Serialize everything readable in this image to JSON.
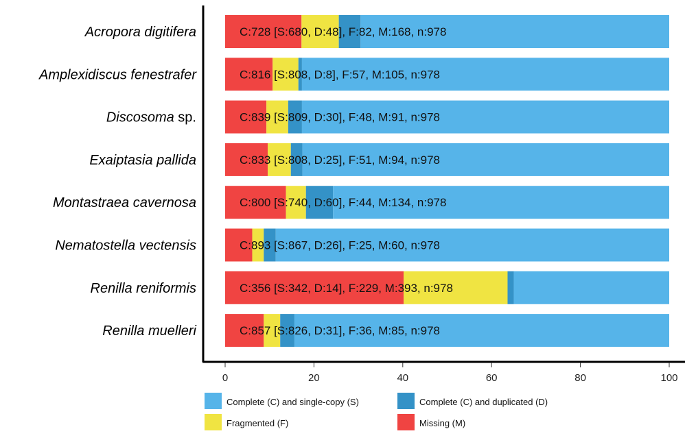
{
  "colors": {
    "single": "#56B4E9",
    "duplicated": "#3492C7",
    "fragmented": "#F0E442",
    "missing": "#F04442"
  },
  "chart_data": {
    "type": "bar",
    "orientation": "horizontal",
    "stacked": true,
    "xlim": [
      0,
      100
    ],
    "x_ticks": [
      0,
      20,
      40,
      60,
      80,
      100
    ],
    "grid": false,
    "legend_position": "bottom",
    "categories": [
      "Acropora digitifera",
      "Amplexidiscus fenestrafer",
      "Discosoma sp.",
      "Exaiptasia pallida",
      "Montastraea cavernosa",
      "Nematostella vectensis",
      "Renilla reniformis",
      "Renilla muelleri"
    ],
    "category_display": [
      [
        {
          "t": "Acropora digitifera",
          "i": true
        }
      ],
      [
        {
          "t": "Amplexidiscus fenestrafer",
          "i": true
        }
      ],
      [
        {
          "t": "Discosoma",
          "i": true
        },
        {
          "t": " sp.",
          "i": false
        }
      ],
      [
        {
          "t": "Exaiptasia pallida",
          "i": true
        }
      ],
      [
        {
          "t": "Montastraea cavernosa",
          "i": true
        }
      ],
      [
        {
          "t": "Nematostella vectensis",
          "i": true
        }
      ],
      [
        {
          "t": "Renilla reniformis",
          "i": true
        }
      ],
      [
        {
          "t": "Renilla muelleri",
          "i": true
        }
      ]
    ],
    "series": [
      {
        "name": "Missing (M)",
        "key": "missing",
        "values": [
          17.2,
          10.7,
          9.3,
          9.6,
          13.7,
          6.1,
          40.2,
          8.7
        ]
      },
      {
        "name": "Fragmented (F)",
        "key": "fragmented",
        "values": [
          8.4,
          5.8,
          4.9,
          5.2,
          4.5,
          2.6,
          23.4,
          3.7
        ]
      },
      {
        "name": "Complete (C) and duplicated (D)",
        "key": "duplicated",
        "values": [
          4.9,
          0.8,
          3.1,
          2.6,
          6.1,
          2.7,
          1.4,
          3.2
        ]
      },
      {
        "name": "Complete (C) and single-copy (S)",
        "key": "single",
        "values": [
          69.5,
          82.7,
          82.7,
          82.6,
          75.7,
          88.6,
          35.0,
          84.4
        ]
      }
    ],
    "bar_labels": [
      "C:728 [S:680, D:48], F:82, M:168, n:978",
      "C:816 [S:808, D:8], F:57, M:105, n:978",
      "C:839 [S:809, D:30], F:48, M:91, n:978",
      "C:833 [S:808, D:25], F:51, M:94, n:978",
      "C:800 [S:740, D:60], F:44, M:134, n:978",
      "C:893 [S:867, D:26], F:25, M:60, n:978",
      "C:356 [S:342, D:14], F:229, M:393, n:978",
      "C:857 [S:826, D:31], F:36, M:85, n:978"
    ],
    "legend": [
      {
        "label": "Complete (C) and single-copy (S)",
        "key": "single"
      },
      {
        "label": "Complete (C) and duplicated (D)",
        "key": "duplicated"
      },
      {
        "label": "Fragmented (F)",
        "key": "fragmented"
      },
      {
        "label": "Missing (M)",
        "key": "missing"
      }
    ]
  }
}
